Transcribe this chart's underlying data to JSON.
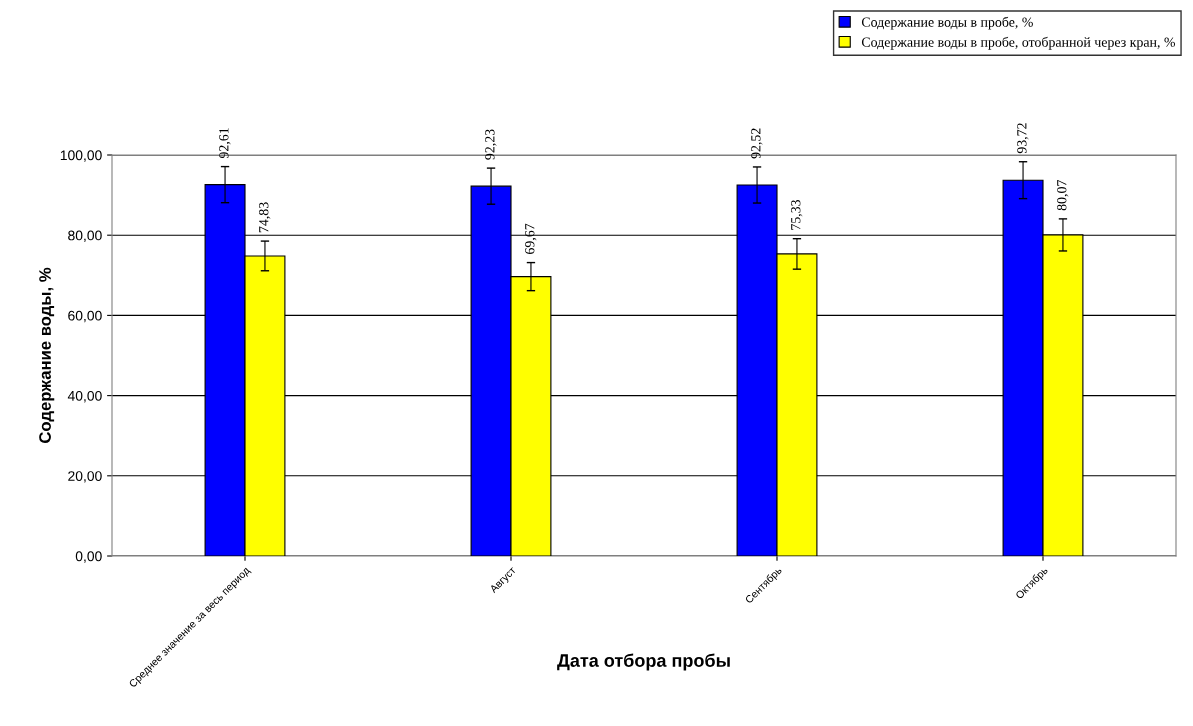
{
  "chart_data": {
    "type": "bar",
    "xlabel": "Дата отбора пробы",
    "ylabel": "Содержание воды, %",
    "categories": [
      "Среднее значение за весь период",
      "Август",
      "Сентябрь",
      "Октябрь"
    ],
    "series": [
      {
        "name": "Содержание воды в пробе, %",
        "color": "#0000ff",
        "values": [
          92.61,
          92.23,
          92.52,
          93.72
        ],
        "errors": [
          4.5,
          4.5,
          4.5,
          4.6
        ],
        "value_labels": [
          "92,61",
          "92,23",
          "92,52",
          "93,72"
        ]
      },
      {
        "name": "Содержание воды в пробе, отобранной через кран, %",
        "color": "#ffff00",
        "values": [
          74.83,
          69.67,
          75.33,
          80.07
        ],
        "errors": [
          3.7,
          3.5,
          3.8,
          4.0
        ],
        "value_labels": [
          "74,83",
          "69,67",
          "75,33",
          "80,07"
        ]
      }
    ],
    "ylim": [
      0,
      100
    ],
    "yticks": [
      {
        "value": 0,
        "label": "0,00"
      },
      {
        "value": 20,
        "label": "20,00"
      },
      {
        "value": 40,
        "label": "40,00"
      },
      {
        "value": 60,
        "label": "60,00"
      },
      {
        "value": 80,
        "label": "80,00"
      },
      {
        "value": 100,
        "label": "100,00"
      }
    ],
    "grid": "y",
    "legend": "top right"
  }
}
